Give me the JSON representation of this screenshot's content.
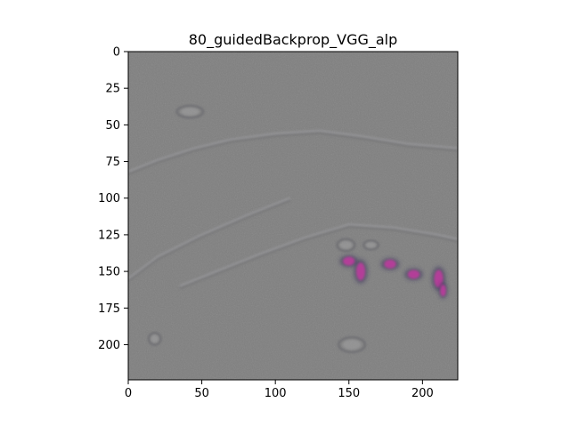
{
  "chart_data": {
    "type": "heatmap",
    "title": "80_guidedBackprop_VGG_alp",
    "xlabel": "",
    "ylabel": "",
    "image_size": [
      224,
      224
    ],
    "xlim": [
      0,
      224
    ],
    "ylim": [
      224,
      0
    ],
    "x_ticks": [
      0,
      50,
      100,
      150,
      200
    ],
    "y_ticks": [
      0,
      25,
      50,
      75,
      100,
      125,
      150,
      175,
      200
    ],
    "grid": false,
    "legend": "none",
    "colors": {
      "background": "#7f7f7f",
      "ridge": "#a3a3a6",
      "shadow": "#6b6b70",
      "hotspot": "#c23aa0",
      "spine": "#000000"
    },
    "features": [
      {
        "kind": "ridge",
        "points": [
          [
            0,
            82
          ],
          [
            20,
            74
          ],
          [
            45,
            66
          ],
          [
            70,
            60
          ],
          [
            100,
            56
          ],
          [
            130,
            54
          ],
          [
            160,
            58
          ],
          [
            190,
            63
          ],
          [
            224,
            66
          ]
        ]
      },
      {
        "kind": "ridge",
        "points": [
          [
            35,
            160
          ],
          [
            60,
            150
          ],
          [
            90,
            138
          ],
          [
            120,
            127
          ],
          [
            150,
            118
          ],
          [
            180,
            120
          ],
          [
            210,
            125
          ],
          [
            224,
            128
          ]
        ]
      },
      {
        "kind": "ridge",
        "points": [
          [
            0,
            155
          ],
          [
            20,
            140
          ],
          [
            50,
            125
          ],
          [
            80,
            112
          ],
          [
            110,
            100
          ]
        ]
      },
      {
        "kind": "blob",
        "x": 42,
        "y": 41,
        "rx": 9,
        "ry": 4
      },
      {
        "kind": "blob",
        "x": 148,
        "y": 132,
        "rx": 6,
        "ry": 4
      },
      {
        "kind": "blob",
        "x": 165,
        "y": 132,
        "rx": 5,
        "ry": 3
      },
      {
        "kind": "hotspot",
        "x": 150,
        "y": 143,
        "rx": 4,
        "ry": 3
      },
      {
        "kind": "hotspot",
        "x": 158,
        "y": 150,
        "rx": 3,
        "ry": 6
      },
      {
        "kind": "hotspot",
        "x": 178,
        "y": 145,
        "rx": 4,
        "ry": 3
      },
      {
        "kind": "hotspot",
        "x": 194,
        "y": 152,
        "rx": 4,
        "ry": 3
      },
      {
        "kind": "hotspot",
        "x": 211,
        "y": 155,
        "rx": 3,
        "ry": 6
      },
      {
        "kind": "hotspot",
        "x": 214,
        "y": 163,
        "rx": 2,
        "ry": 4
      },
      {
        "kind": "blob",
        "x": 152,
        "y": 200,
        "rx": 9,
        "ry": 5
      },
      {
        "kind": "blob",
        "x": 18,
        "y": 196,
        "rx": 4,
        "ry": 4
      }
    ]
  }
}
